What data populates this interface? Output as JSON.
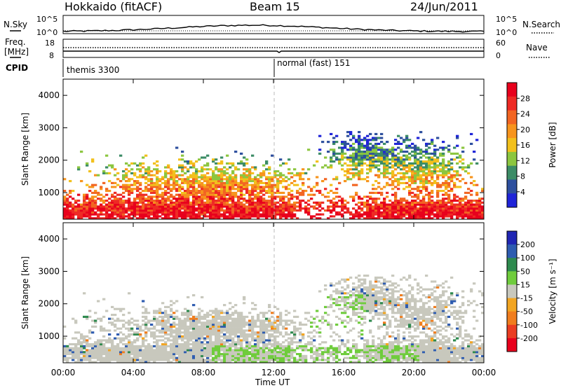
{
  "header": {
    "station": "Hokkaido (fitACF)",
    "beam": "Beam 15",
    "date": "24/Jun/2011"
  },
  "top_panel": {
    "left_label": "N.Sky",
    "right_label": "N.Search",
    "left_ticks": [
      "10^5",
      "10^0"
    ],
    "right_ticks": [
      "10^5",
      "10^0"
    ]
  },
  "freq_panel": {
    "left_label_1": "Freq.",
    "left_label_2": "[MHz]",
    "right_label": "Nave",
    "left_ticks": [
      "18",
      "8"
    ],
    "right_ticks": [
      "60",
      "0"
    ]
  },
  "cpid": {
    "label": "CPID",
    "mode_1": "themis 3300",
    "mode_2": "normal (fast) 151"
  },
  "colors": {
    "power_scale": [
      "#1f24d8",
      "#2d4f9e",
      "#3c8c66",
      "#8cc63f",
      "#f2c01c",
      "#f7941d",
      "#f26522",
      "#ee2a24",
      "#e8001c"
    ],
    "velocity_scale": [
      "#2026b3",
      "#2e5cb0",
      "#2e8a4e",
      "#6fcc3c",
      "#c8c8bd",
      "#f2a522",
      "#f07d1e",
      "#ea3d22",
      "#e8001c"
    ],
    "ground_scatter": "#c8c8bd"
  },
  "chart_data": [
    {
      "type": "heatmap",
      "title": "Power",
      "ylabel": "Slant Range [km]",
      "ylim": [
        180,
        4500
      ],
      "y_ticks": [
        "1000",
        "2000",
        "3000",
        "4000"
      ],
      "xlim": [
        "00:00",
        "24:00"
      ],
      "colorbar": {
        "label": "Power [dB]",
        "ticks": [
          "4",
          "8",
          "12",
          "16",
          "20",
          "24",
          "28"
        ],
        "range": [
          0,
          32
        ]
      }
    },
    {
      "type": "heatmap",
      "title": "Velocity",
      "ylabel": "Slant Range [km]",
      "ylim": [
        180,
        4500
      ],
      "y_ticks": [
        "1000",
        "2000",
        "3000",
        "4000"
      ],
      "xlim": [
        "00:00",
        "24:00"
      ],
      "colorbar": {
        "label": "Velocity [m s⁻¹]",
        "ticks": [
          "200",
          "100",
          "50",
          "15",
          "-15",
          "-50",
          "-100",
          "-200"
        ]
      }
    }
  ],
  "x_axis": {
    "label": "Time UT",
    "ticks": [
      "00:00",
      "04:00",
      "08:00",
      "12:00",
      "16:00",
      "20:00",
      "00:00"
    ]
  }
}
